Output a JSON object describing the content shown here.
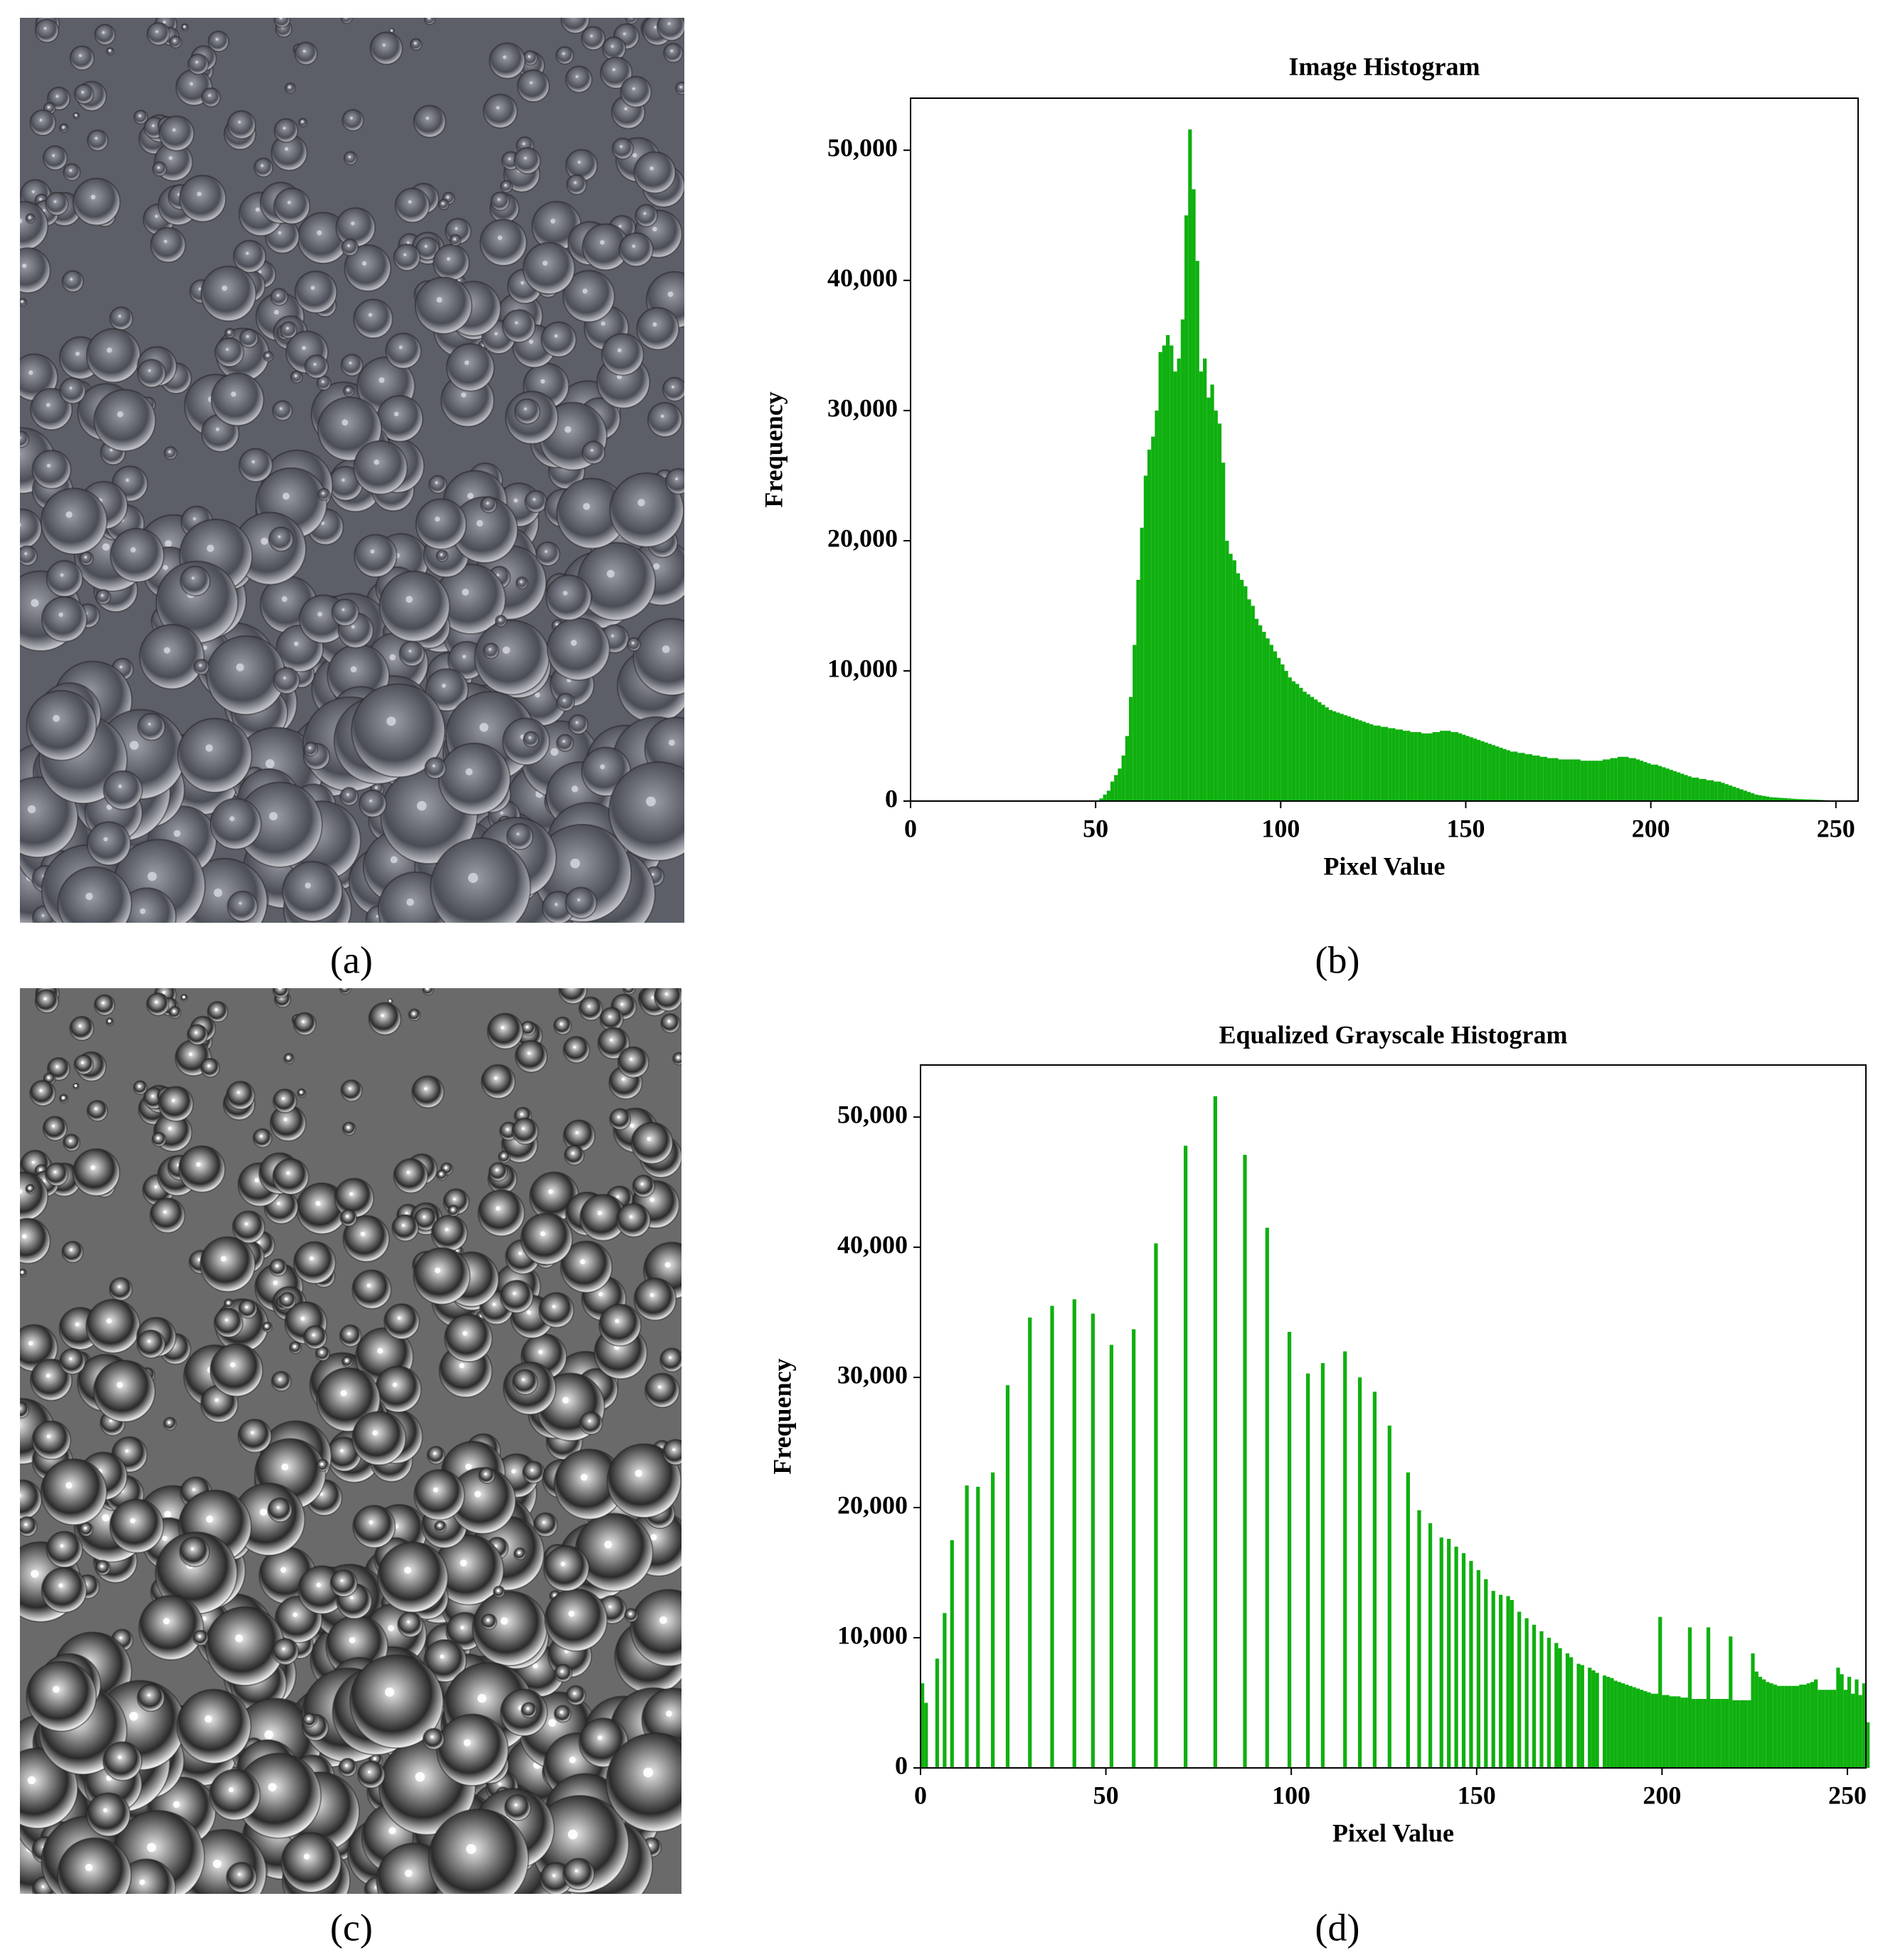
{
  "panels": [
    {
      "label": "(a)"
    },
    {
      "label": "(b)"
    },
    {
      "label": "(c)"
    },
    {
      "label": "(d)"
    }
  ],
  "chart_data": [
    {
      "type": "histogram",
      "title": "Image Histogram",
      "xlabel": "Pixel Value",
      "ylabel": "Frequency",
      "color": "#0fb00f",
      "xlim": [
        0,
        256
      ],
      "ylim": [
        0,
        54000
      ],
      "xticks": [
        0,
        50,
        100,
        150,
        200,
        250
      ],
      "yticks": [
        0,
        {
          "value": 10000,
          "label": "10,000"
        },
        {
          "value": 20000,
          "label": "20,000"
        },
        {
          "value": 30000,
          "label": "30,000"
        },
        {
          "value": 40000,
          "label": "40,000"
        },
        {
          "value": 50000,
          "label": "50,000"
        }
      ],
      "bins": [
        0,
        1,
        2,
        3,
        4,
        5,
        6,
        7,
        8,
        9,
        10,
        11,
        12,
        13,
        14,
        15,
        16,
        17,
        18,
        19,
        20,
        21,
        22,
        23,
        24,
        25,
        26,
        27,
        28,
        29,
        30,
        31,
        32,
        33,
        34,
        35,
        36,
        37,
        38,
        39,
        40,
        41,
        42,
        43,
        44,
        45,
        46,
        47,
        48,
        49,
        50,
        51,
        52,
        53,
        54,
        55,
        56,
        57,
        58,
        59,
        60,
        61,
        62,
        63,
        64,
        65,
        66,
        67,
        68,
        69,
        70,
        71,
        72,
        73,
        74,
        75,
        76,
        77,
        78,
        79,
        80,
        81,
        82,
        83,
        84,
        85,
        86,
        87,
        88,
        89,
        90,
        91,
        92,
        93,
        94,
        95,
        96,
        97,
        98,
        99,
        100,
        101,
        102,
        103,
        104,
        105,
        106,
        107,
        108,
        109,
        110,
        111,
        112,
        113,
        114,
        115,
        116,
        117,
        118,
        119,
        120,
        121,
        122,
        123,
        124,
        125,
        126,
        127,
        128,
        129,
        130,
        131,
        132,
        133,
        134,
        135,
        136,
        137,
        138,
        139,
        140,
        141,
        142,
        143,
        144,
        145,
        146,
        147,
        148,
        149,
        150,
        151,
        152,
        153,
        154,
        155,
        156,
        157,
        158,
        159,
        160,
        161,
        162,
        163,
        164,
        165,
        166,
        167,
        168,
        169,
        170,
        171,
        172,
        173,
        174,
        175,
        176,
        177,
        178,
        179,
        180,
        181,
        182,
        183,
        184,
        185,
        186,
        187,
        188,
        189,
        190,
        191,
        192,
        193,
        194,
        195,
        196,
        197,
        198,
        199,
        200,
        201,
        202,
        203,
        204,
        205,
        206,
        207,
        208,
        209,
        210,
        211,
        212,
        213,
        214,
        215,
        216,
        217,
        218,
        219,
        220,
        221,
        222,
        223,
        224,
        225,
        226,
        227,
        228,
        229,
        230,
        231,
        232,
        233,
        234,
        235,
        236,
        237,
        238,
        239,
        240,
        241,
        242,
        243,
        244,
        245,
        246,
        247,
        248,
        249,
        250,
        251,
        252,
        253,
        254,
        255,
        256
      ],
      "values": [
        0,
        0,
        0,
        0,
        0,
        0,
        0,
        0,
        0,
        0,
        0,
        0,
        0,
        0,
        0,
        0,
        0,
        0,
        0,
        0,
        0,
        0,
        0,
        0,
        0,
        0,
        0,
        0,
        0,
        0,
        0,
        0,
        0,
        0,
        0,
        0,
        0,
        0,
        0,
        0,
        0,
        0,
        0,
        0,
        0,
        0,
        0,
        0,
        0,
        0,
        0,
        200,
        500,
        800,
        1500,
        2000,
        2500,
        3500,
        5000,
        8000,
        12000,
        17000,
        21000,
        25000,
        27000,
        28000,
        30000,
        34500,
        35000,
        35800,
        35000,
        33000,
        34000,
        37000,
        45000,
        51600,
        47000,
        41500,
        33000,
        34000,
        31000,
        32000,
        30000,
        29000,
        26000,
        20000,
        19000,
        18500,
        17500,
        17000,
        16500,
        15500,
        15000,
        14000,
        13500,
        13000,
        12500,
        12000,
        11500,
        11000,
        10500,
        10000,
        9500,
        9200,
        9000,
        8700,
        8400,
        8200,
        8000,
        7800,
        7600,
        7400,
        7200,
        7000,
        6900,
        6800,
        6700,
        6600,
        6500,
        6400,
        6300,
        6200,
        6100,
        6000,
        5900,
        5800,
        5800,
        5700,
        5700,
        5600,
        5600,
        5500,
        5500,
        5400,
        5400,
        5300,
        5300,
        5300,
        5200,
        5200,
        5200,
        5300,
        5300,
        5400,
        5400,
        5400,
        5300,
        5300,
        5200,
        5100,
        5000,
        4900,
        4800,
        4700,
        4600,
        4500,
        4400,
        4300,
        4200,
        4100,
        4000,
        3900,
        3800,
        3800,
        3700,
        3700,
        3600,
        3600,
        3500,
        3500,
        3400,
        3400,
        3300,
        3300,
        3300,
        3200,
        3200,
        3200,
        3200,
        3200,
        3200,
        3100,
        3100,
        3100,
        3100,
        3100,
        3100,
        3200,
        3200,
        3300,
        3300,
        3400,
        3400,
        3400,
        3300,
        3300,
        3200,
        3100,
        3000,
        2900,
        2800,
        2800,
        2700,
        2600,
        2500,
        2400,
        2300,
        2200,
        2100,
        2000,
        1900,
        1800,
        1800,
        1700,
        1700,
        1600,
        1600,
        1500,
        1500,
        1400,
        1300,
        1200,
        1100,
        1000,
        900,
        800,
        700,
        600,
        500,
        450,
        400,
        350,
        300,
        280,
        260,
        240,
        220,
        200,
        180,
        160,
        150,
        140,
        130,
        120,
        110,
        100,
        80,
        60,
        40,
        20,
        0,
        0,
        0,
        0,
        0,
        0
      ]
    },
    {
      "type": "histogram",
      "title": "Equalized Grayscale Histogram",
      "xlabel": "Pixel Value",
      "ylabel": "Frequency",
      "color": "#0fb00f",
      "xlim": [
        0,
        255
      ],
      "ylim": [
        0,
        54000
      ],
      "xticks": [
        0,
        50,
        100,
        150,
        200,
        250
      ],
      "yticks": [
        0,
        {
          "value": 10000,
          "label": "10,000"
        },
        {
          "value": 20000,
          "label": "20,000"
        },
        {
          "value": 30000,
          "label": "30,000"
        },
        {
          "value": 40000,
          "label": "40,000"
        },
        {
          "value": 50000,
          "label": "50,000"
        }
      ],
      "bins": [
        0,
        1,
        2,
        3,
        4,
        5,
        6,
        7,
        8,
        9,
        10,
        11,
        12,
        13,
        14,
        15,
        16,
        17,
        18,
        19,
        20,
        21,
        22,
        23,
        24,
        25,
        26,
        27,
        28,
        29,
        30,
        31,
        32,
        33,
        34,
        35,
        36,
        37,
        38,
        39,
        40,
        41,
        42,
        43,
        44,
        45,
        46,
        47,
        48,
        49,
        50,
        51,
        52,
        53,
        54,
        55,
        56,
        57,
        58,
        59,
        60,
        61,
        62,
        63,
        64,
        65,
        66,
        67,
        68,
        69,
        70,
        71,
        72,
        73,
        74,
        75,
        76,
        77,
        78,
        79,
        80,
        81,
        82,
        83,
        84,
        85,
        86,
        87,
        88,
        89,
        90,
        91,
        92,
        93,
        94,
        95,
        96,
        97,
        98,
        99,
        100,
        101,
        102,
        103,
        104,
        105,
        106,
        107,
        108,
        109,
        110,
        111,
        112,
        113,
        114,
        115,
        116,
        117,
        118,
        119,
        120,
        121,
        122,
        123,
        124,
        125,
        126,
        127,
        128,
        129,
        130,
        131,
        132,
        133,
        134,
        135,
        136,
        137,
        138,
        139,
        140,
        141,
        142,
        143,
        144,
        145,
        146,
        147,
        148,
        149,
        150,
        151,
        152,
        153,
        154,
        155,
        156,
        157,
        158,
        159,
        160,
        161,
        162,
        163,
        164,
        165,
        166,
        167,
        168,
        169,
        170,
        171,
        172,
        173,
        174,
        175,
        176,
        177,
        178,
        179,
        180,
        181,
        182,
        183,
        184,
        185,
        186,
        187,
        188,
        189,
        190,
        191,
        192,
        193,
        194,
        195,
        196,
        197,
        198,
        199,
        200,
        201,
        202,
        203,
        204,
        205,
        206,
        207,
        208,
        209,
        210,
        211,
        212,
        213,
        214,
        215,
        216,
        217,
        218,
        219,
        220,
        221,
        222,
        223,
        224,
        225,
        226,
        227,
        228,
        229,
        230,
        231,
        232,
        233,
        234,
        235,
        236,
        237,
        238,
        239,
        240,
        241,
        242,
        243,
        244,
        245,
        246,
        247,
        248,
        249,
        250,
        251,
        252,
        253,
        254,
        255,
        256
      ],
      "values": [
        6500,
        5000,
        0,
        0,
        8400,
        0,
        11900,
        0,
        17500,
        0,
        0,
        0,
        21700,
        0,
        0,
        21600,
        0,
        0,
        0,
        22700,
        0,
        0,
        0,
        29400,
        0,
        0,
        0,
        0,
        0,
        34600,
        0,
        0,
        0,
        0,
        0,
        35500,
        0,
        0,
        0,
        0,
        0,
        36000,
        0,
        0,
        0,
        0,
        34900,
        0,
        0,
        0,
        0,
        32500,
        0,
        0,
        0,
        0,
        0,
        33700,
        0,
        0,
        0,
        0,
        0,
        40300,
        0,
        0,
        0,
        0,
        0,
        0,
        0,
        47800,
        0,
        0,
        0,
        0,
        0,
        0,
        0,
        51600,
        0,
        0,
        0,
        0,
        0,
        0,
        0,
        47100,
        0,
        0,
        0,
        0,
        0,
        41500,
        0,
        0,
        0,
        0,
        0,
        33500,
        0,
        0,
        0,
        0,
        30300,
        0,
        0,
        0,
        31100,
        0,
        0,
        0,
        0,
        0,
        32000,
        0,
        0,
        0,
        30000,
        0,
        0,
        0,
        28900,
        0,
        0,
        0,
        26300,
        0,
        0,
        0,
        0,
        22700,
        0,
        0,
        19800,
        0,
        0,
        18800,
        0,
        0,
        17700,
        0,
        17600,
        0,
        17000,
        0,
        16500,
        0,
        15900,
        0,
        15200,
        0,
        14500,
        0,
        13600,
        0,
        13300,
        0,
        13200,
        12900,
        0,
        12000,
        0,
        11500,
        0,
        11000,
        0,
        10500,
        0,
        10000,
        0,
        9600,
        9200,
        0,
        8800,
        8500,
        0,
        8000,
        7900,
        0,
        7700,
        7500,
        7300,
        0,
        7100,
        7000,
        6900,
        6700,
        6600,
        6500,
        6400,
        6300,
        6200,
        6100,
        6000,
        5900,
        5800,
        5700,
        5700,
        11600,
        5600,
        5600,
        5500,
        5500,
        5500,
        5400,
        5400,
        10800,
        5300,
        5300,
        5300,
        5300,
        10800,
        5300,
        5300,
        5300,
        5300,
        5300,
        10100,
        5200,
        5200,
        5200,
        5200,
        5200,
        8800,
        7400,
        7000,
        6800,
        6600,
        6500,
        6400,
        6300,
        6300,
        6300,
        6300,
        6300,
        6300,
        6400,
        6400,
        6500,
        6600,
        6800,
        6000,
        6000,
        6000,
        6000,
        6000,
        7700,
        7200,
        6000,
        7000,
        5700,
        6800,
        5600,
        6500,
        3500
      ]
    }
  ]
}
